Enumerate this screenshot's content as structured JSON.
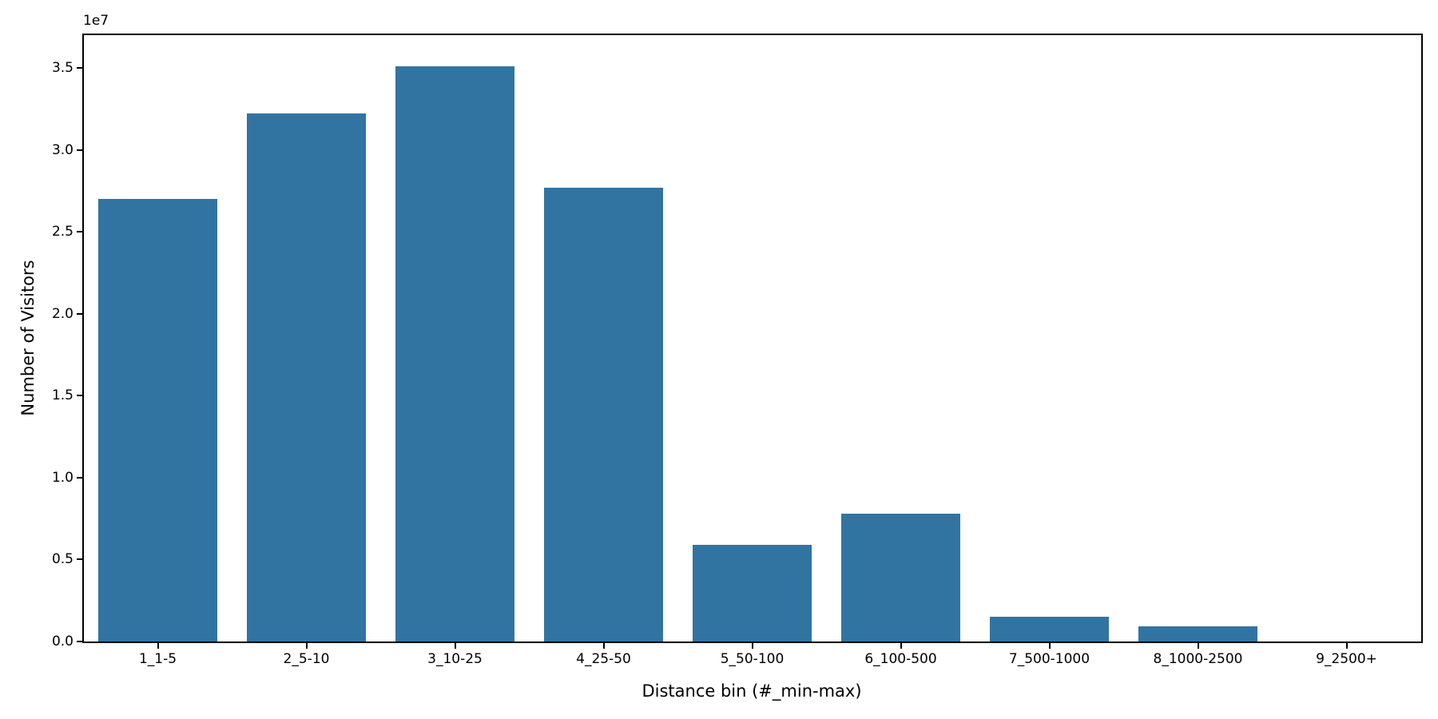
{
  "figure": {
    "background": "#ffffff",
    "bar_color": "#3274a1",
    "axis_color": "#000000",
    "offset_text": "1e7"
  },
  "chart_data": {
    "type": "bar",
    "title": "",
    "xlabel": "Distance bin (#_min-max)",
    "ylabel": "Number of Visitors",
    "categories": [
      "1_1-5",
      "2_5-10",
      "3_10-25",
      "4_25-50",
      "5_50-100",
      "6_100-500",
      "7_500-1000",
      "8_1000-2500",
      "9_2500+"
    ],
    "values": [
      27000000,
      32200000,
      35100000,
      27700000,
      5900000,
      7800000,
      1500000,
      950000,
      0
    ],
    "ylim": [
      0,
      37000000
    ],
    "ytick_labels": [
      "0.0",
      "0.5",
      "1.0",
      "1.5",
      "2.0",
      "2.5",
      "3.0",
      "3.5"
    ],
    "ytick_unit": 10000000,
    "grid": false,
    "legend": null
  }
}
